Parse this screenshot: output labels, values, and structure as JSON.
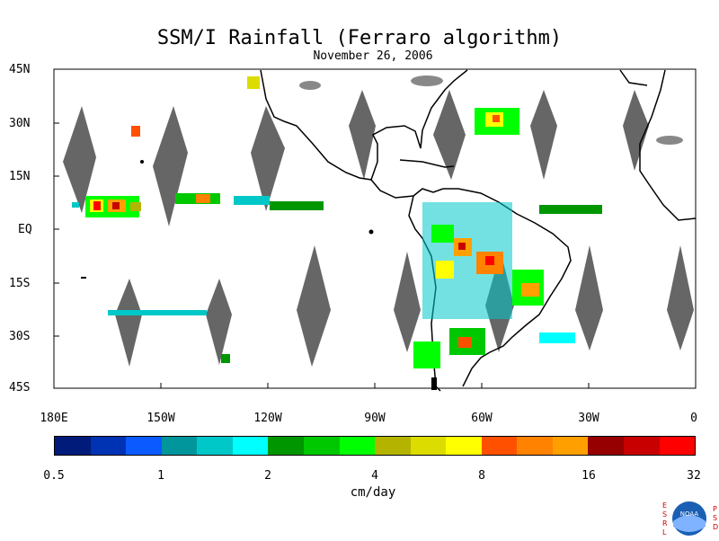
{
  "title": "SSM/I Rainfall (Ferraro algorithm)",
  "date": "November 26, 2006",
  "units": "cm/day",
  "lat_labels": [
    "45N",
    "30N",
    "15N",
    "EQ",
    "15S",
    "30S",
    "45S"
  ],
  "lon_labels": [
    "180E",
    "150W",
    "120W",
    "90W",
    "60W",
    "30W",
    "0"
  ],
  "colorbar": {
    "colors": [
      "#001b7a",
      "#0032b4",
      "#0a5aff",
      "#00969b",
      "#00c8c8",
      "#00ffff",
      "#009600",
      "#00c800",
      "#00ff00",
      "#b4b400",
      "#dcdc00",
      "#ffff00",
      "#ff5000",
      "#ff8200",
      "#ffa000",
      "#960000",
      "#c80000",
      "#ff0000"
    ],
    "tick_labels": [
      "0.5",
      "1",
      "2",
      "4",
      "8",
      "16",
      "32"
    ]
  },
  "logo": {
    "name": "noaa-logo",
    "text": "NOAA",
    "left_letters": [
      "E",
      "S",
      "R",
      "L"
    ],
    "right_letters": [
      "P",
      "S",
      "D"
    ]
  },
  "colors": {
    "land": "#000000",
    "missing_swath": "#666666",
    "background": "#ffffff"
  }
}
